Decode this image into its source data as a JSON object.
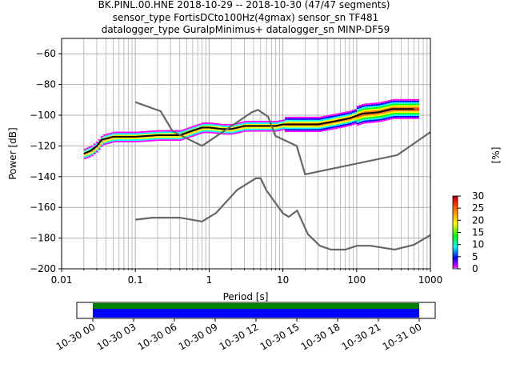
{
  "title_lines": [
    "BK.PINL.00.HNE   2018-10-29 -- 2018-10-30  (47/47 segments)",
    "sensor_type FortisDCto100Hz(4gmax) sensor_sn TF481",
    "datalogger_type GuralpMinimus+ datalogger_sn MINP-DF59"
  ],
  "chart_data": {
    "type": "line",
    "xscale": "log",
    "xlim": [
      0.01,
      1000
    ],
    "ylim": [
      -200,
      -50
    ],
    "xlabel": "Period [s]",
    "ylabel": "Power [dB]",
    "xtick_labels": [
      "0.01",
      "0.1",
      "1",
      "10",
      "100",
      "1000"
    ],
    "xticks": [
      0.01,
      0.1,
      1,
      10,
      100,
      1000
    ],
    "yticks": [
      -200,
      -180,
      -160,
      -140,
      -120,
      -100,
      -80,
      -60
    ],
    "ytick_labels": [
      "−200",
      "−180",
      "−160",
      "−140",
      "−120",
      "−100",
      "−80",
      "−60"
    ],
    "grid": true,
    "series": [
      {
        "role": "mean",
        "color": "#000000",
        "x": [
          0.02,
          0.025,
          0.03,
          0.035,
          0.05,
          0.1,
          0.2,
          0.4,
          0.6,
          0.8,
          1.0,
          1.5,
          2,
          3,
          4,
          6,
          8,
          10,
          15,
          20,
          30,
          50,
          80,
          120,
          200,
          300,
          400,
          600
        ],
        "y": [
          -125,
          -123,
          -120,
          -116,
          -114,
          -114,
          -113,
          -113,
          -110,
          -108,
          -108,
          -109,
          -109,
          -107,
          -107,
          -107,
          -107,
          -106,
          -106,
          -106,
          -106,
          -104,
          -102,
          -99,
          -98,
          -96,
          -96,
          -96
        ]
      },
      {
        "role": "NHNM",
        "color": "#666666",
        "x": [
          0.1,
          0.22,
          0.32,
          0.8,
          3.8,
          4.6,
          6.3,
          7.9,
          15.4,
          20,
          354.8,
          1000
        ],
        "y": [
          -91.5,
          -97.4,
          -110.5,
          -120,
          -98,
          -96.5,
          -101,
          -113.5,
          -120,
          -138.5,
          -126,
          -111
        ]
      },
      {
        "role": "NLNM",
        "color": "#666666",
        "x": [
          0.1,
          0.17,
          0.4,
          0.8,
          1.24,
          2.4,
          4.3,
          5.0,
          6.0,
          10.0,
          12.0,
          15.6,
          21.9,
          31.6,
          45,
          70,
          101,
          154,
          328,
          600,
          1000
        ],
        "y": [
          -168,
          -166.7,
          -166.7,
          -169.2,
          -163.7,
          -148.6,
          -141.1,
          -141.1,
          -149,
          -163.8,
          -166.2,
          -162.1,
          -177.5,
          -185,
          -187.5,
          -187.5,
          -185,
          -185,
          -187.5,
          -184.4,
          -178
        ]
      }
    ],
    "colorbar": {
      "label": "[%]",
      "min": 0,
      "max": 30,
      "ticks": [
        0,
        5,
        10,
        15,
        20,
        25,
        30
      ],
      "tick_labels": [
        "0",
        "5",
        "10",
        "15",
        "20",
        "25",
        "30"
      ],
      "colormap": "pqlx"
    },
    "coverage": {
      "tick_labels": [
        "10-30 00",
        "10-30 03",
        "10-30 06",
        "10-30 09",
        "10-30 12",
        "10-30 15",
        "10-30 18",
        "10-30 21",
        "10-31 00"
      ],
      "data_color": "#0000ff",
      "processed_color": "#008000",
      "data_start_hours": 0,
      "data_end_hours": 24
    }
  }
}
